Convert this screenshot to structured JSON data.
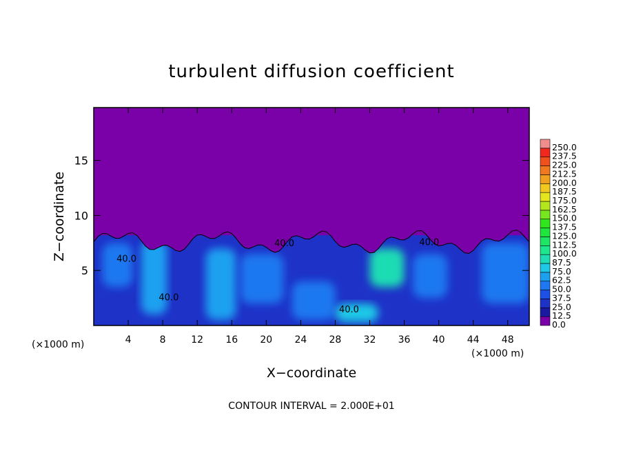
{
  "chart_data": {
    "type": "heatmap",
    "title": "turbulent diffusion coefficient",
    "xlabel": "X−coordinate",
    "ylabel": "Z−coordinate",
    "x_unit_left": "(×1000 m)",
    "x_unit_right": "(×1000 m)",
    "footer": "CONTOUR INTERVAL = 2.000E+01",
    "xlim": [
      0,
      50.5
    ],
    "ylim": [
      0,
      19.8
    ],
    "x_ticks": [
      4,
      8,
      12,
      16,
      20,
      24,
      28,
      32,
      36,
      40,
      44,
      48
    ],
    "y_ticks": [
      5,
      10,
      15
    ],
    "background_value": 0.0,
    "colorbar": {
      "levels": [
        "0.0",
        "12.5",
        "25.0",
        "37.5",
        "50.0",
        "62.5",
        "75.0",
        "87.5",
        "100.0",
        "112.5",
        "125.0",
        "137.5",
        "150.0",
        "162.5",
        "175.0",
        "187.5",
        "200.0",
        "212.5",
        "225.0",
        "237.5",
        "250.0"
      ],
      "colors": [
        "#7a00a8",
        "#1a1aa0",
        "#1e32c8",
        "#1e50e6",
        "#1e78f0",
        "#1ea0f0",
        "#1ec8e6",
        "#1edcb4",
        "#1ee68c",
        "#1ee664",
        "#1ee63c",
        "#32e61e",
        "#78e61e",
        "#b4e61e",
        "#e6e61e",
        "#f0c81e",
        "#f0a01e",
        "#f0781e",
        "#f0501e",
        "#f0281e",
        "#f08c8c"
      ]
    },
    "contour_labels": [
      {
        "text": "40.0",
        "x": 22.1,
        "y": 7.2
      },
      {
        "text": "40.0",
        "x": 3.8,
        "y": 5.8
      },
      {
        "text": "40.0",
        "x": 8.7,
        "y": 2.3
      },
      {
        "text": "40.0",
        "x": 29.6,
        "y": 1.2
      },
      {
        "text": "40.0",
        "x": 38.9,
        "y": 7.3
      }
    ],
    "field_regions": [
      {
        "x": [
          0,
          50.5
        ],
        "y": [
          0,
          8.2
        ],
        "value": 30
      },
      {
        "x": [
          1.0,
          4.5
        ],
        "y": [
          3.5,
          7.5
        ],
        "value": 60
      },
      {
        "x": [
          5.5,
          8.5
        ],
        "y": [
          1.0,
          7.8
        ],
        "value": 65
      },
      {
        "x": [
          13.0,
          16.5
        ],
        "y": [
          0.5,
          7.0
        ],
        "value": 70
      },
      {
        "x": [
          17.0,
          22.0
        ],
        "y": [
          2.0,
          6.5
        ],
        "value": 55
      },
      {
        "x": [
          23.0,
          28.0
        ],
        "y": [
          0.5,
          4.0
        ],
        "value": 60
      },
      {
        "x": [
          28.0,
          33.0
        ],
        "y": [
          0.3,
          2.0
        ],
        "value": 75
      },
      {
        "x": [
          32.0,
          36.0
        ],
        "y": [
          3.5,
          7.0
        ],
        "value": 90
      },
      {
        "x": [
          37.0,
          41.0
        ],
        "y": [
          2.5,
          6.5
        ],
        "value": 60
      },
      {
        "x": [
          45.0,
          50.5
        ],
        "y": [
          2.0,
          7.5
        ],
        "value": 55
      }
    ]
  }
}
